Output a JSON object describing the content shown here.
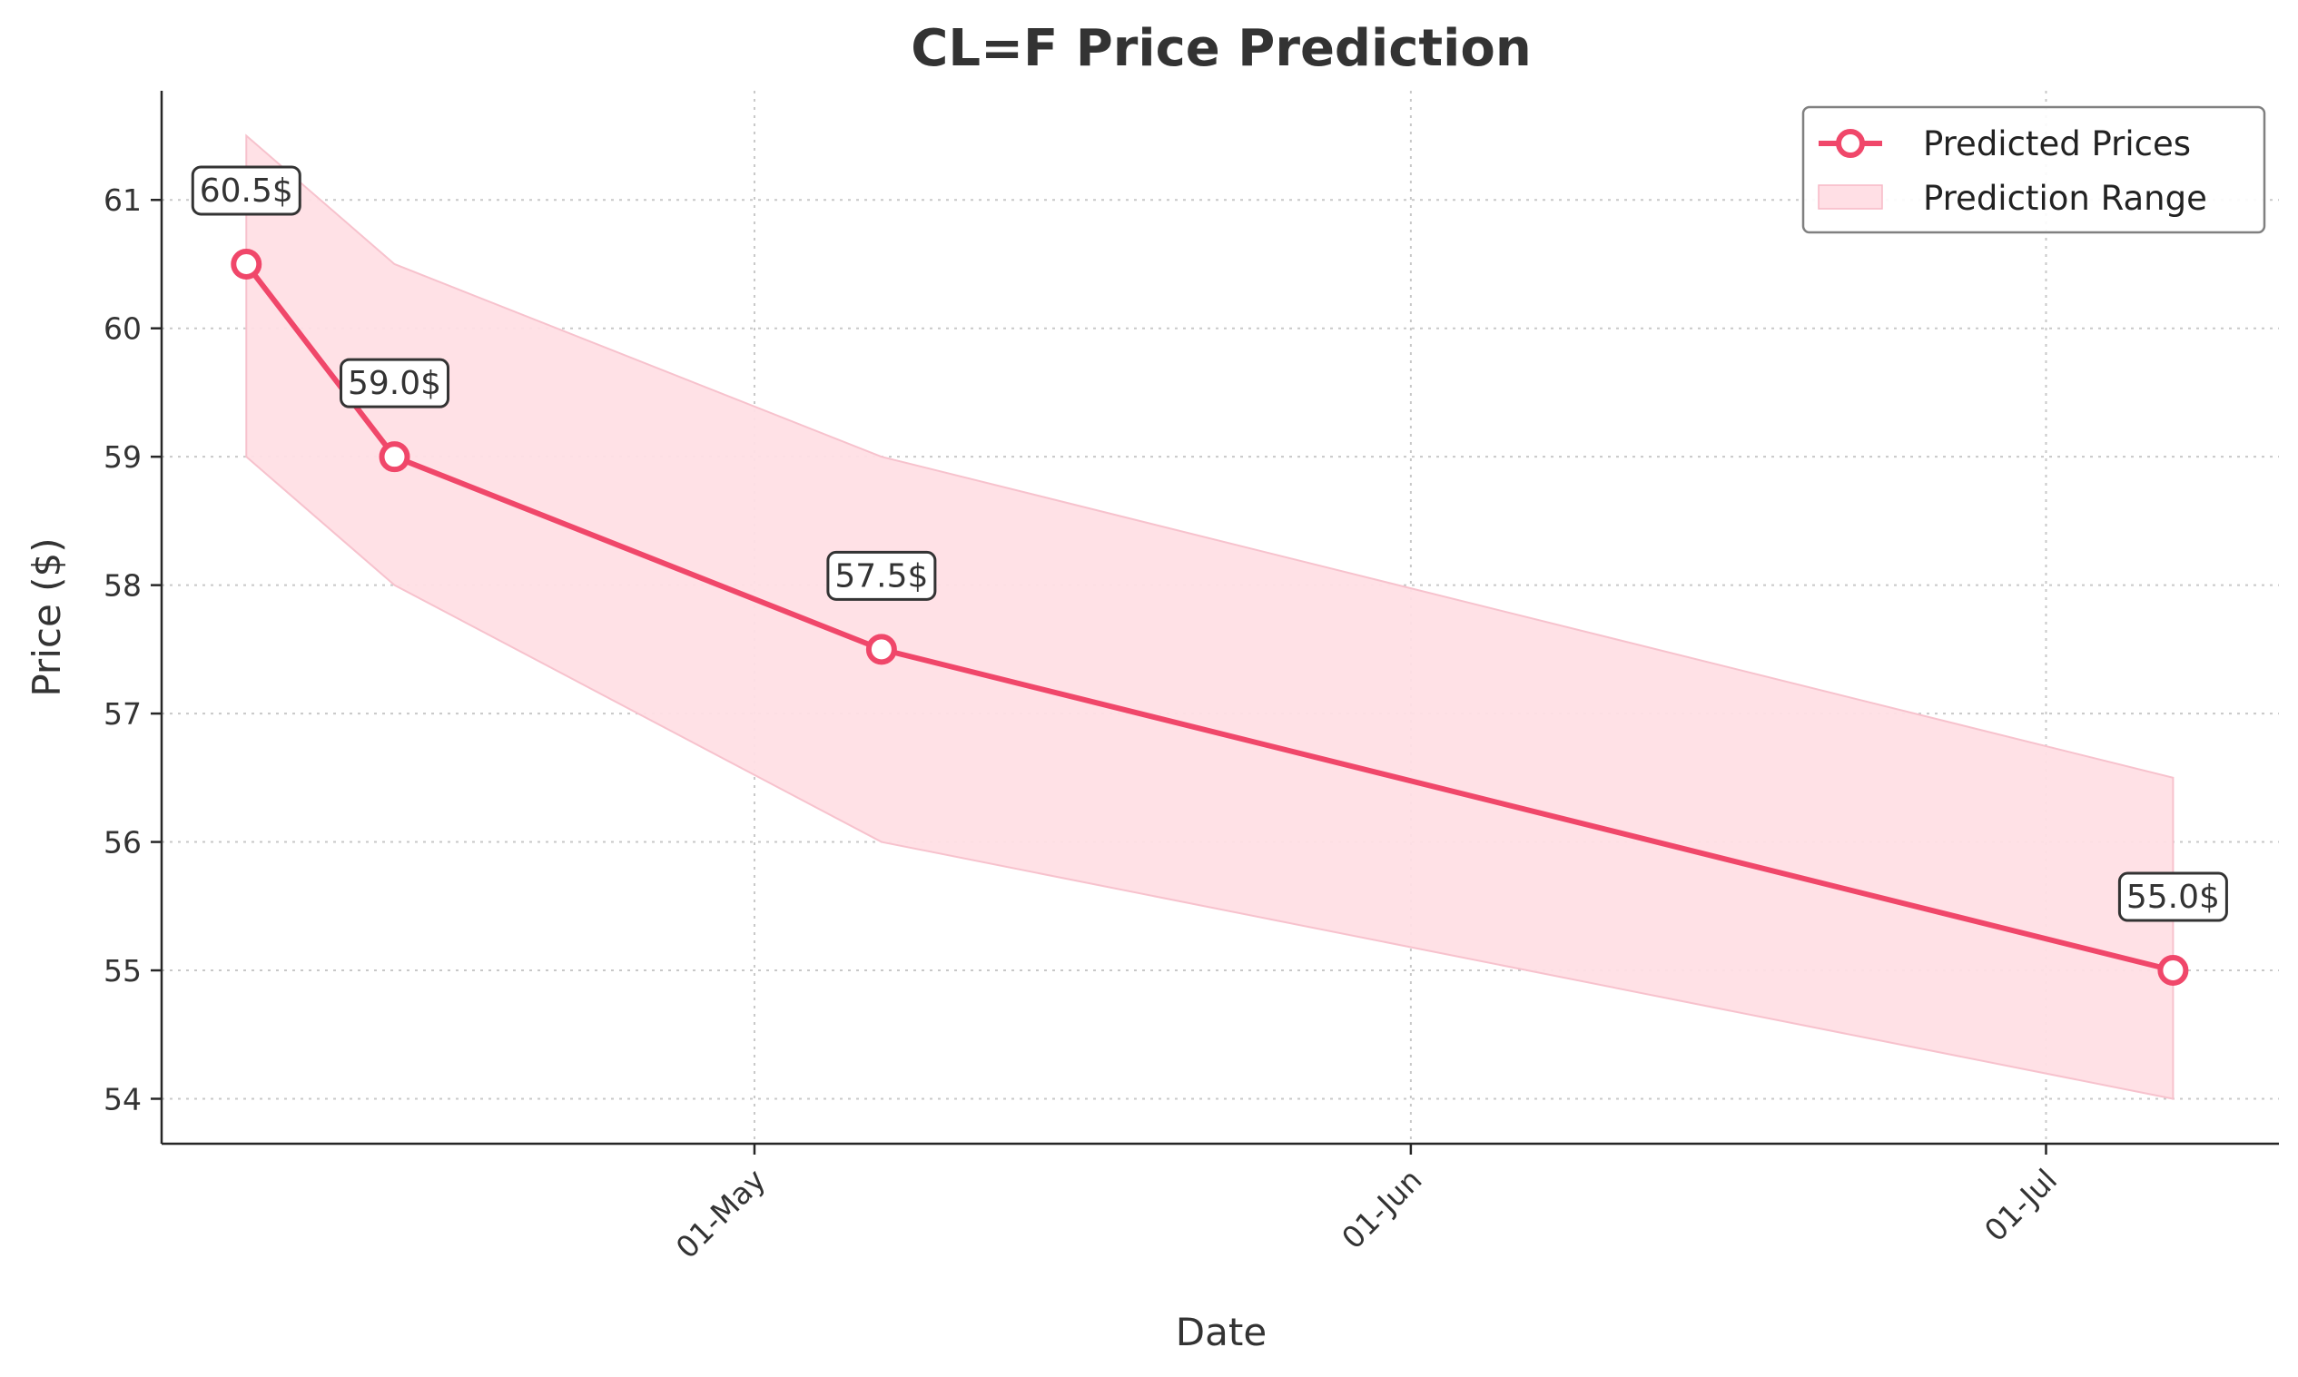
{
  "chart_data": {
    "type": "line",
    "title": "CL=F Price Prediction",
    "xlabel": "Date",
    "ylabel": "Price ($)",
    "x_tick_labels": [
      "01-May",
      "01-Jun",
      "01-Jul"
    ],
    "x_tick_dates": [
      "2025-05-01",
      "2025-06-01",
      "2025-07-01"
    ],
    "x_range": [
      "2025-04-03",
      "2025-07-12"
    ],
    "y_ticks": [
      54,
      55,
      56,
      57,
      58,
      59,
      60,
      61
    ],
    "ylim": [
      53.65,
      61.85
    ],
    "grid": true,
    "legend_position": "top-right",
    "legend": [
      "Predicted Prices",
      "Prediction Range"
    ],
    "series": [
      {
        "name": "Predicted Prices",
        "x": [
          "2025-04-07",
          "2025-04-14",
          "2025-05-07",
          "2025-07-07"
        ],
        "values": [
          60.5,
          59.0,
          57.5,
          55.0
        ],
        "labels": [
          "60.5$",
          "59.0$",
          "57.5$",
          "55.0$"
        ],
        "color": "#f0476a"
      },
      {
        "name": "Prediction Range",
        "x": [
          "2025-04-07",
          "2025-04-14",
          "2025-05-07",
          "2025-07-07"
        ],
        "upper": [
          61.5,
          60.5,
          59.0,
          56.5
        ],
        "lower": [
          59.0,
          58.0,
          56.0,
          54.0
        ],
        "color": "#ffdfe5"
      }
    ]
  }
}
